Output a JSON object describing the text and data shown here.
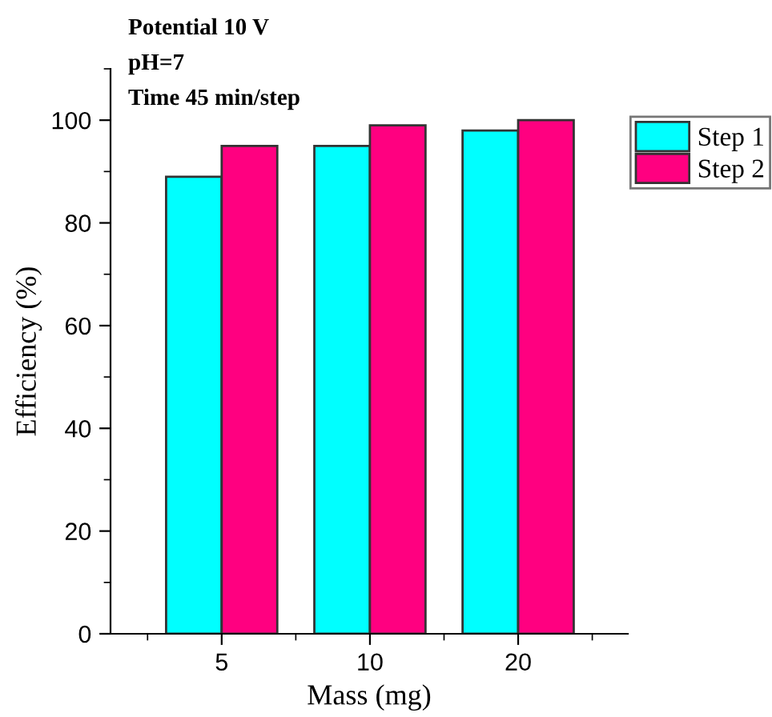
{
  "chart_data": {
    "type": "bar",
    "xlabel": "Mass (mg)",
    "ylabel": "Efficiency (%)",
    "categories": [
      "5",
      "10",
      "20"
    ],
    "series": [
      {
        "name": "Step 1",
        "color": "#00ffff",
        "values": [
          89,
          95,
          98
        ]
      },
      {
        "name": "Step 2",
        "color": "#ff0080",
        "values": [
          95,
          99,
          100
        ]
      }
    ],
    "ylim": [
      0,
      110
    ],
    "yticks": [
      0,
      20,
      40,
      60,
      80,
      100
    ],
    "grid": false,
    "legend": "top right",
    "annotations": [
      "Potential 10 V",
      "pH=7",
      "Time 45 min/step"
    ]
  }
}
